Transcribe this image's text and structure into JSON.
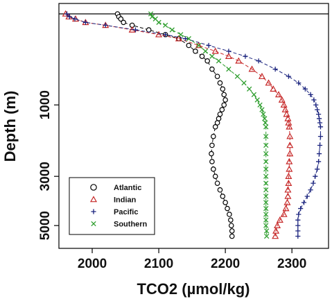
{
  "chart_data": {
    "type": "line",
    "title": "",
    "xlabel": "TCO2 (µmol/kg)",
    "ylabel": "Depth (m)",
    "xlim": [
      1950,
      2355
    ],
    "ylim": [
      5550,
      0
    ],
    "x_ticks": [
      2000,
      2100,
      2200,
      2300
    ],
    "x_tick_labels": [
      "2000",
      "2100",
      "2200",
      "2300"
    ],
    "y_ticks": [
      1000,
      3000,
      5000
    ],
    "y_tick_labels": [
      "1000",
      "3000",
      "5000"
    ],
    "y_scale": "sqrt",
    "reference_line_depth": 0,
    "grid": false,
    "legend_position": "bottom-left",
    "series": [
      {
        "name": "Atlantic",
        "marker": "circle",
        "color": "#000000",
        "points": [
          [
            2038,
            0
          ],
          [
            2040,
            5
          ],
          [
            2043,
            10
          ],
          [
            2047,
            20
          ],
          [
            2060,
            30
          ],
          [
            2085,
            50
          ],
          [
            2110,
            75
          ],
          [
            2130,
            100
          ],
          [
            2145,
            150
          ],
          [
            2155,
            200
          ],
          [
            2165,
            250
          ],
          [
            2173,
            300
          ],
          [
            2180,
            400
          ],
          [
            2188,
            500
          ],
          [
            2192,
            600
          ],
          [
            2196,
            700
          ],
          [
            2198,
            800
          ],
          [
            2200,
            900
          ],
          [
            2198,
            1000
          ],
          [
            2195,
            1100
          ],
          [
            2192,
            1200
          ],
          [
            2190,
            1300
          ],
          [
            2188,
            1400
          ],
          [
            2185,
            1500
          ],
          [
            2182,
            1750
          ],
          [
            2180,
            2000
          ],
          [
            2179,
            2250
          ],
          [
            2180,
            2500
          ],
          [
            2182,
            2750
          ],
          [
            2185,
            3000
          ],
          [
            2188,
            3250
          ],
          [
            2192,
            3500
          ],
          [
            2196,
            3750
          ],
          [
            2200,
            4000
          ],
          [
            2203,
            4250
          ],
          [
            2206,
            4500
          ],
          [
            2208,
            4750
          ],
          [
            2209,
            5000
          ],
          [
            2210,
            5250
          ],
          [
            2210,
            5500
          ]
        ]
      },
      {
        "name": "Indian",
        "marker": "triangle",
        "color": "#c62828",
        "points": [
          [
            1960,
            0
          ],
          [
            1965,
            5
          ],
          [
            1975,
            10
          ],
          [
            1990,
            20
          ],
          [
            2020,
            30
          ],
          [
            2060,
            50
          ],
          [
            2100,
            75
          ],
          [
            2130,
            100
          ],
          [
            2160,
            150
          ],
          [
            2185,
            200
          ],
          [
            2205,
            250
          ],
          [
            2220,
            300
          ],
          [
            2240,
            400
          ],
          [
            2255,
            500
          ],
          [
            2265,
            600
          ],
          [
            2272,
            700
          ],
          [
            2280,
            800
          ],
          [
            2285,
            900
          ],
          [
            2288,
            1000
          ],
          [
            2290,
            1100
          ],
          [
            2292,
            1200
          ],
          [
            2294,
            1300
          ],
          [
            2295,
            1400
          ],
          [
            2296,
            1500
          ],
          [
            2297,
            1750
          ],
          [
            2297,
            2000
          ],
          [
            2297,
            2250
          ],
          [
            2296,
            2500
          ],
          [
            2296,
            2750
          ],
          [
            2295,
            3000
          ],
          [
            2295,
            3250
          ],
          [
            2294,
            3500
          ],
          [
            2294,
            3750
          ],
          [
            2293,
            4000
          ],
          [
            2291,
            4250
          ],
          [
            2288,
            4500
          ],
          [
            2282,
            4750
          ],
          [
            2278,
            5000
          ],
          [
            2276,
            5250
          ],
          [
            2275,
            5500
          ]
        ]
      },
      {
        "name": "Pacific",
        "marker": "plus",
        "color": "#1a237e",
        "points": [
          [
            1962,
            0
          ],
          [
            1966,
            5
          ],
          [
            1974,
            10
          ],
          [
            1990,
            20
          ],
          [
            2020,
            30
          ],
          [
            2065,
            50
          ],
          [
            2110,
            75
          ],
          [
            2140,
            100
          ],
          [
            2175,
            150
          ],
          [
            2205,
            200
          ],
          [
            2230,
            250
          ],
          [
            2250,
            300
          ],
          [
            2275,
            400
          ],
          [
            2295,
            500
          ],
          [
            2310,
            600
          ],
          [
            2320,
            700
          ],
          [
            2328,
            800
          ],
          [
            2333,
            900
          ],
          [
            2336,
            1000
          ],
          [
            2338,
            1100
          ],
          [
            2340,
            1200
          ],
          [
            2341,
            1300
          ],
          [
            2342,
            1400
          ],
          [
            2343,
            1500
          ],
          [
            2343,
            1750
          ],
          [
            2342,
            2000
          ],
          [
            2341,
            2250
          ],
          [
            2340,
            2500
          ],
          [
            2338,
            2750
          ],
          [
            2335,
            3000
          ],
          [
            2332,
            3250
          ],
          [
            2328,
            3500
          ],
          [
            2323,
            3750
          ],
          [
            2318,
            4000
          ],
          [
            2313,
            4250
          ],
          [
            2310,
            4500
          ],
          [
            2309,
            4750
          ],
          [
            2309,
            5000
          ],
          [
            2309,
            5250
          ],
          [
            2309,
            5500
          ]
        ]
      },
      {
        "name": "Southern",
        "marker": "cross",
        "color": "#2e9e2e",
        "points": [
          [
            2088,
            0
          ],
          [
            2090,
            5
          ],
          [
            2095,
            10
          ],
          [
            2100,
            20
          ],
          [
            2110,
            30
          ],
          [
            2120,
            50
          ],
          [
            2133,
            75
          ],
          [
            2145,
            100
          ],
          [
            2160,
            150
          ],
          [
            2170,
            200
          ],
          [
            2180,
            250
          ],
          [
            2190,
            300
          ],
          [
            2205,
            400
          ],
          [
            2218,
            500
          ],
          [
            2228,
            600
          ],
          [
            2236,
            700
          ],
          [
            2243,
            800
          ],
          [
            2248,
            900
          ],
          [
            2252,
            1000
          ],
          [
            2255,
            1100
          ],
          [
            2257,
            1200
          ],
          [
            2259,
            1300
          ],
          [
            2260,
            1400
          ],
          [
            2261,
            1500
          ],
          [
            2261,
            1750
          ],
          [
            2261,
            2000
          ],
          [
            2261,
            2250
          ],
          [
            2261,
            2500
          ],
          [
            2261,
            2750
          ],
          [
            2261,
            3000
          ],
          [
            2261,
            3250
          ],
          [
            2261,
            3500
          ],
          [
            2261,
            3750
          ],
          [
            2261,
            4000
          ],
          [
            2261,
            4250
          ],
          [
            2261,
            4500
          ],
          [
            2261,
            4750
          ],
          [
            2261,
            5000
          ],
          [
            2262,
            5250
          ],
          [
            2262,
            5500
          ]
        ]
      }
    ]
  }
}
